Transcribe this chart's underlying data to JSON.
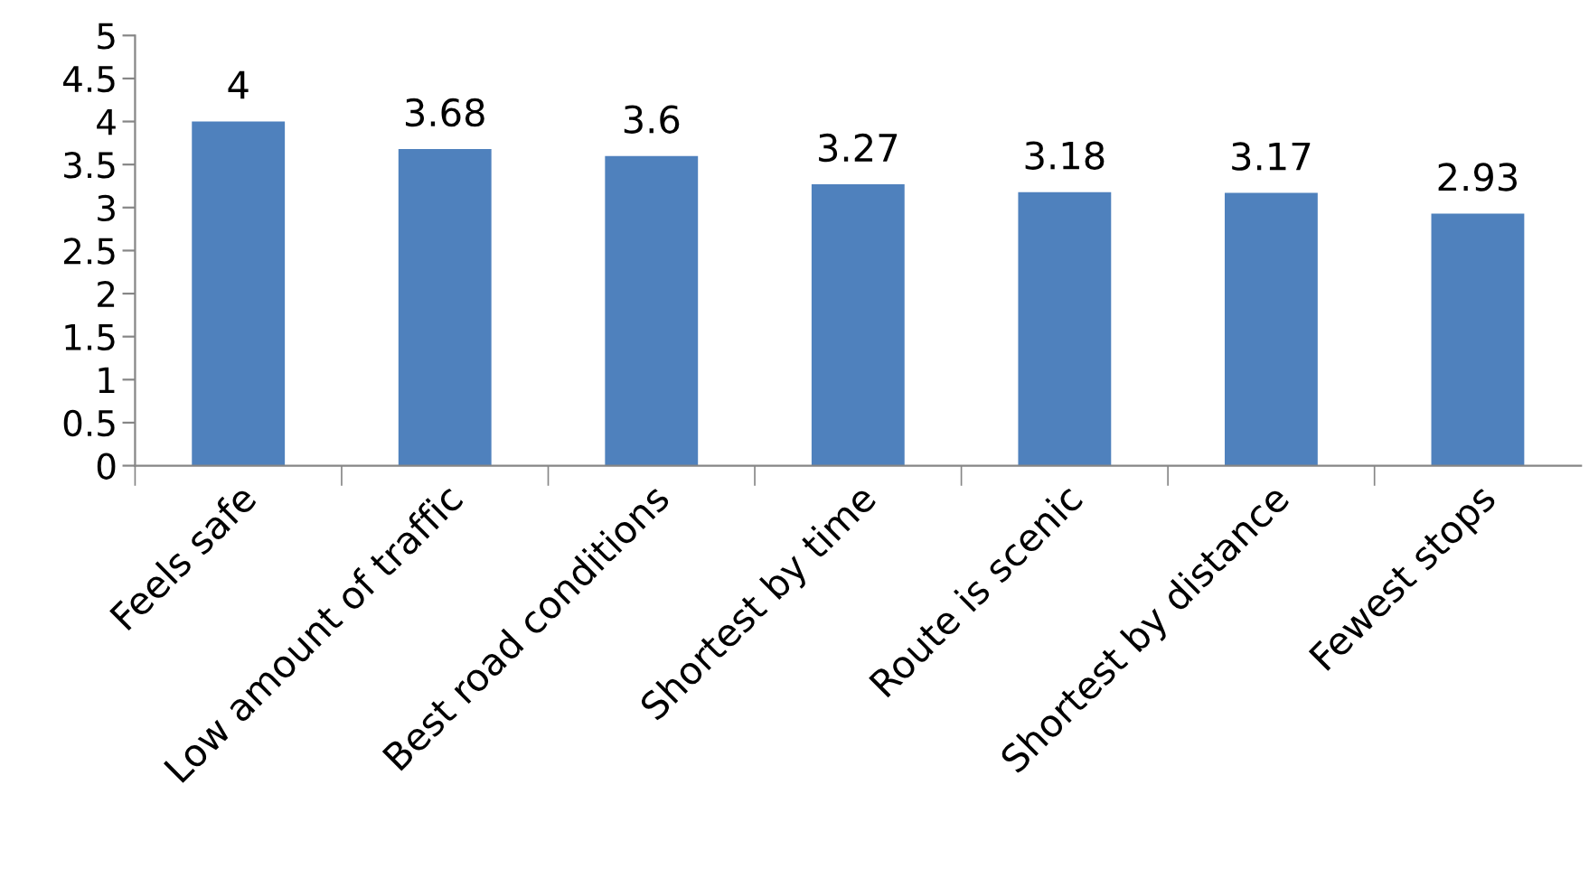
{
  "chart_data": {
    "type": "bar",
    "categories": [
      "Feels safe",
      "Low amount of traffic",
      "Best road conditions",
      "Shortest by time",
      "Route is scenic",
      "Shortest by distance",
      "Fewest stops"
    ],
    "values": [
      4,
      3.68,
      3.6,
      3.27,
      3.18,
      3.17,
      2.93
    ],
    "color": "#4f81bd",
    "ylim": [
      0,
      5
    ],
    "yticks": [
      0,
      0.5,
      1,
      1.5,
      2,
      2.5,
      3,
      3.5,
      4,
      4.5,
      5
    ],
    "data_labels": true,
    "grid": false,
    "legend": false
  }
}
